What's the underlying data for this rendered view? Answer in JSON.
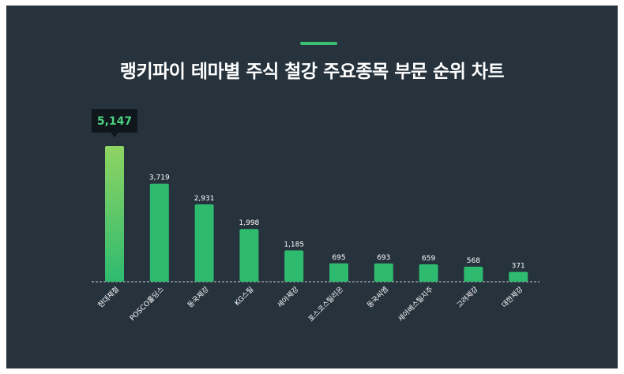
{
  "title": "랭키파이 테마별 주식 철강 주요종목 부문 순위 차트",
  "colors": {
    "background": "#26323c",
    "bar": "#2ebb70",
    "bar_top_highlight": "#8fd462",
    "accent": "#3bbf73",
    "tooltip_bg": "#0f161c",
    "tooltip_text": "#4cd27f",
    "text": "#ffffff"
  },
  "chart_data": {
    "type": "bar",
    "title": "랭키파이 테마별 주식 철강 주요종목 부문 순위 차트",
    "categories": [
      "현대제철",
      "POSCO홀딩스",
      "동국제강",
      "KG스틸",
      "세아제강",
      "포스코스틸리온",
      "동국씨엠",
      "세아베스틸지주",
      "고려제강",
      "대한제강"
    ],
    "values": [
      5147,
      3719,
      2931,
      1998,
      1185,
      695,
      693,
      659,
      568,
      371
    ],
    "value_labels": [
      "5,147",
      "3,719",
      "2,931",
      "1,998",
      "1,185",
      "695",
      "693",
      "659",
      "568",
      "371"
    ],
    "highlight_index": 0,
    "highlight_label": "5,147",
    "xlabel": "",
    "ylabel": "",
    "grid": false,
    "legend": "none"
  }
}
